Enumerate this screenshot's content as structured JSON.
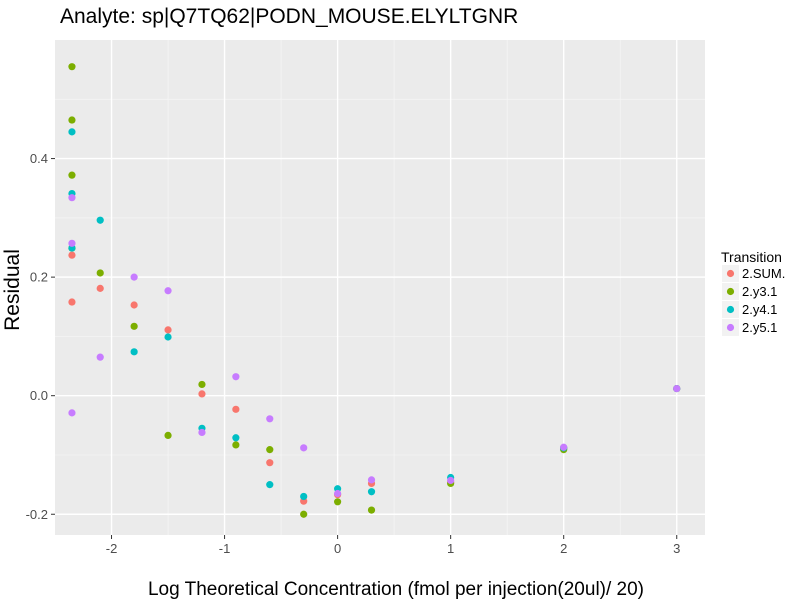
{
  "chart_data": {
    "type": "scatter",
    "title": "Analyte: sp|Q7TQ62|PODN_MOUSE.ELYLTGNR",
    "xlabel": "Log Theoretical Concentration (fmol per injection(20ul)/ 20)",
    "ylabel": "Residual",
    "xlim": [
      -2.5,
      3.25
    ],
    "ylim": [
      -0.235,
      0.6
    ],
    "x_ticks": [
      -2,
      -1,
      0,
      1,
      2,
      3
    ],
    "x_tick_labels": [
      "-2",
      "-1",
      "0",
      "1",
      "2",
      "3"
    ],
    "y_ticks": [
      -0.2,
      0.0,
      0.2,
      0.4
    ],
    "y_tick_labels": [
      "-0.2",
      "0.0",
      "0.2",
      "0.4"
    ],
    "grid": true,
    "legend": {
      "title": "Transition",
      "position": "right"
    },
    "series": [
      {
        "name": "2.SUM.",
        "color": "#F8766D",
        "points": [
          [
            -2.35,
            0.237
          ],
          [
            -2.35,
            0.158
          ],
          [
            -2.1,
            0.181
          ],
          [
            -1.8,
            0.153
          ],
          [
            -1.5,
            0.111
          ],
          [
            -1.2,
            0.003
          ],
          [
            -0.9,
            -0.023
          ],
          [
            -0.6,
            -0.113
          ],
          [
            -0.3,
            -0.178
          ],
          [
            0.0,
            -0.167
          ],
          [
            0.3,
            -0.148
          ],
          [
            1.0,
            -0.146
          ],
          [
            2.0,
            -0.088
          ],
          [
            3.0,
            0.012
          ]
        ]
      },
      {
        "name": "2.y3.1",
        "color": "#7CAE00",
        "points": [
          [
            -2.35,
            0.555
          ],
          [
            -2.35,
            0.465
          ],
          [
            -2.35,
            0.372
          ],
          [
            -2.35,
            0.249
          ],
          [
            -2.1,
            0.207
          ],
          [
            -1.8,
            0.117
          ],
          [
            -1.5,
            -0.067
          ],
          [
            -1.2,
            0.019
          ],
          [
            -0.9,
            -0.083
          ],
          [
            -0.6,
            -0.091
          ],
          [
            -0.3,
            -0.2
          ],
          [
            0.0,
            -0.179
          ],
          [
            0.3,
            -0.193
          ],
          [
            1.0,
            -0.148
          ],
          [
            2.0,
            -0.091
          ],
          [
            3.0,
            0.012
          ]
        ]
      },
      {
        "name": "2.y4.1",
        "color": "#00BFC4",
        "points": [
          [
            -2.35,
            0.445
          ],
          [
            -2.35,
            0.341
          ],
          [
            -2.35,
            0.249
          ],
          [
            -2.1,
            0.296
          ],
          [
            -1.8,
            0.074
          ],
          [
            -1.5,
            0.099
          ],
          [
            -1.2,
            -0.055
          ],
          [
            -0.9,
            -0.071
          ],
          [
            -0.6,
            -0.15
          ],
          [
            -0.3,
            -0.17
          ],
          [
            0.0,
            -0.157
          ],
          [
            0.3,
            -0.162
          ],
          [
            1.0,
            -0.138
          ],
          [
            2.0,
            -0.088
          ],
          [
            3.0,
            0.012
          ]
        ]
      },
      {
        "name": "2.y5.1",
        "color": "#C77CFF",
        "points": [
          [
            -2.35,
            0.334
          ],
          [
            -2.35,
            0.257
          ],
          [
            -2.35,
            -0.029
          ],
          [
            -2.1,
            0.065
          ],
          [
            -1.8,
            0.2
          ],
          [
            -1.5,
            0.177
          ],
          [
            -1.2,
            -0.062
          ],
          [
            -0.9,
            0.032
          ],
          [
            -0.6,
            -0.039
          ],
          [
            -0.3,
            -0.088
          ],
          [
            0.0,
            -0.165
          ],
          [
            0.3,
            -0.142
          ],
          [
            1.0,
            -0.143
          ],
          [
            2.0,
            -0.087
          ],
          [
            3.0,
            0.012
          ]
        ]
      }
    ]
  }
}
